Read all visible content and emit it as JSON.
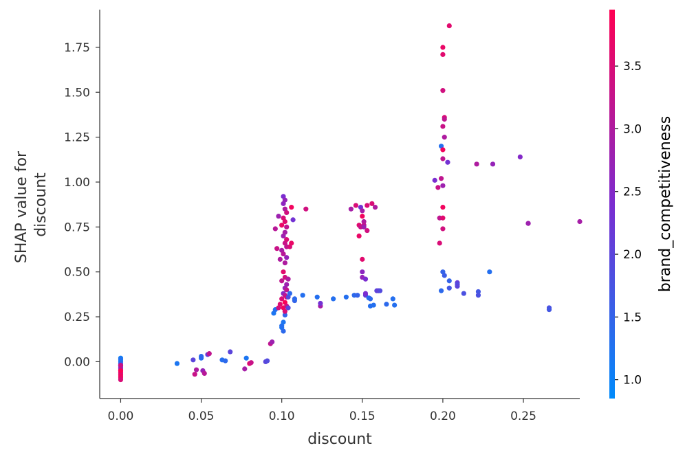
{
  "chart_data": {
    "type": "scatter",
    "title": "",
    "xlabel": "discount",
    "ylabel_lines": [
      "SHAP value for",
      "discount"
    ],
    "xlim": [
      -0.013,
      0.285
    ],
    "ylim": [
      -0.205,
      1.96
    ],
    "xticks": [
      {
        "value": 0.0,
        "label": "0.00"
      },
      {
        "value": 0.05,
        "label": "0.05"
      },
      {
        "value": 0.1,
        "label": "0.10"
      },
      {
        "value": 0.15,
        "label": "0.15"
      },
      {
        "value": 0.2,
        "label": "0.20"
      },
      {
        "value": 0.25,
        "label": "0.25"
      }
    ],
    "yticks": [
      {
        "value": 0.0,
        "label": "0.00"
      },
      {
        "value": 0.25,
        "label": "0.25"
      },
      {
        "value": 0.5,
        "label": "0.50"
      },
      {
        "value": 0.75,
        "label": "0.75"
      },
      {
        "value": 1.0,
        "label": "1.00"
      },
      {
        "value": 1.25,
        "label": "1.25"
      },
      {
        "value": 1.5,
        "label": "1.50"
      },
      {
        "value": 1.75,
        "label": "1.75"
      }
    ],
    "colorbar": {
      "label": "brand_competitiveness",
      "range": [
        0.85,
        3.95
      ],
      "ticks": [
        {
          "value": 1.0,
          "label": "1.0"
        },
        {
          "value": 1.5,
          "label": "1.5"
        },
        {
          "value": 2.0,
          "label": "2.0"
        },
        {
          "value": 2.5,
          "label": "2.5"
        },
        {
          "value": 3.0,
          "label": "3.0"
        },
        {
          "value": 3.5,
          "label": "3.5"
        }
      ],
      "colors": [
        "#008bfb",
        "#ff0052"
      ]
    },
    "grid": false,
    "points": [
      [
        0,
        0.02,
        1.1
      ],
      [
        0,
        0.01,
        1.3
      ],
      [
        0,
        0.0,
        1.2
      ],
      [
        0,
        -0.01,
        1.5
      ],
      [
        0,
        -0.02,
        2.0
      ],
      [
        0,
        -0.03,
        2.4
      ],
      [
        0,
        -0.04,
        2.8
      ],
      [
        0,
        -0.05,
        3.1
      ],
      [
        0,
        -0.06,
        3.4
      ],
      [
        0,
        -0.07,
        3.6
      ],
      [
        0,
        -0.08,
        3.8
      ],
      [
        0,
        -0.09,
        3.7
      ],
      [
        0,
        -0.1,
        3.5
      ],
      [
        0,
        -0.05,
        3.9
      ],
      [
        0,
        -0.02,
        3.3
      ],
      [
        0.035,
        -0.01,
        1.2
      ],
      [
        0.045,
        0.01,
        2.0
      ],
      [
        0.046,
        -0.07,
        3.3
      ],
      [
        0.047,
        -0.045,
        3.0
      ],
      [
        0.05,
        0.02,
        1.3
      ],
      [
        0.05,
        0.03,
        1.4
      ],
      [
        0.051,
        -0.05,
        2.7
      ],
      [
        0.052,
        -0.065,
        3.1
      ],
      [
        0.054,
        0.04,
        2.2
      ],
      [
        0.055,
        0.045,
        3.2
      ],
      [
        0.063,
        0.01,
        1.3
      ],
      [
        0.065,
        0.005,
        1.4
      ],
      [
        0.068,
        0.055,
        2.0
      ],
      [
        0.077,
        -0.04,
        2.9
      ],
      [
        0.078,
        0.02,
        1.2
      ],
      [
        0.08,
        -0.01,
        3.6
      ],
      [
        0.081,
        -0.005,
        3.3
      ],
      [
        0.09,
        0.0,
        2.0
      ],
      [
        0.091,
        0.005,
        1.9
      ],
      [
        0.093,
        0.1,
        3.2
      ],
      [
        0.094,
        0.11,
        2.8
      ],
      [
        0.095,
        0.27,
        1.2
      ],
      [
        0.096,
        0.29,
        1.3
      ],
      [
        0.096,
        0.74,
        3.1
      ],
      [
        0.097,
        0.63,
        3.3
      ],
      [
        0.098,
        0.3,
        3.4
      ],
      [
        0.098,
        0.81,
        2.8
      ],
      [
        0.099,
        0.57,
        3.0
      ],
      [
        0.099,
        0.32,
        3.6
      ],
      [
        0.1,
        0.19,
        1.2
      ],
      [
        0.1,
        0.2,
        1.3
      ],
      [
        0.1,
        0.35,
        3.5
      ],
      [
        0.1,
        0.45,
        3.2
      ],
      [
        0.1,
        0.62,
        2.9
      ],
      [
        0.1,
        0.76,
        3.7
      ],
      [
        0.101,
        0.17,
        1.4
      ],
      [
        0.101,
        0.22,
        1.2
      ],
      [
        0.101,
        0.3,
        3.8
      ],
      [
        0.101,
        0.38,
        2.5
      ],
      [
        0.101,
        0.5,
        3.6
      ],
      [
        0.101,
        0.6,
        3.1
      ],
      [
        0.101,
        0.7,
        2.8
      ],
      [
        0.101,
        0.8,
        3.5
      ],
      [
        0.101,
        0.88,
        2.6
      ],
      [
        0.101,
        0.92,
        2.4
      ],
      [
        0.102,
        0.26,
        1.5
      ],
      [
        0.102,
        0.28,
        3.5
      ],
      [
        0.102,
        0.33,
        3.9
      ],
      [
        0.102,
        0.37,
        3.1
      ],
      [
        0.102,
        0.41,
        2.7
      ],
      [
        0.102,
        0.47,
        3.4
      ],
      [
        0.102,
        0.55,
        3.0
      ],
      [
        0.102,
        0.66,
        3.3
      ],
      [
        0.102,
        0.72,
        2.9
      ],
      [
        0.102,
        0.78,
        3.6
      ],
      [
        0.102,
        0.85,
        3.0
      ],
      [
        0.102,
        0.9,
        2.7
      ],
      [
        0.103,
        0.31,
        3.4
      ],
      [
        0.103,
        0.36,
        3.6
      ],
      [
        0.103,
        0.4,
        3.2
      ],
      [
        0.103,
        0.43,
        2.8
      ],
      [
        0.103,
        0.58,
        2.7
      ],
      [
        0.103,
        0.64,
        3.2
      ],
      [
        0.103,
        0.68,
        3.5
      ],
      [
        0.103,
        0.75,
        3.2
      ],
      [
        0.103,
        0.83,
        3.4
      ],
      [
        0.104,
        0.3,
        2.0
      ],
      [
        0.104,
        0.36,
        1.9
      ],
      [
        0.104,
        0.46,
        3.0
      ],
      [
        0.105,
        0.38,
        1.4
      ],
      [
        0.105,
        0.64,
        3.5
      ],
      [
        0.106,
        0.66,
        3.7
      ],
      [
        0.106,
        0.86,
        3.8
      ],
      [
        0.107,
        0.79,
        2.3
      ],
      [
        0.108,
        0.34,
        1.5
      ],
      [
        0.108,
        0.35,
        1.4
      ],
      [
        0.113,
        0.37,
        1.3
      ],
      [
        0.115,
        0.85,
        3.4
      ],
      [
        0.122,
        0.36,
        1.3
      ],
      [
        0.124,
        0.31,
        2.9
      ],
      [
        0.124,
        0.325,
        2.3
      ],
      [
        0.132,
        0.35,
        1.3
      ],
      [
        0.14,
        0.36,
        1.3
      ],
      [
        0.143,
        0.85,
        2.9
      ],
      [
        0.145,
        0.37,
        1.4
      ],
      [
        0.146,
        0.87,
        3.5
      ],
      [
        0.147,
        0.37,
        1.5
      ],
      [
        0.148,
        0.76,
        3.6
      ],
      [
        0.148,
        0.7,
        3.7
      ],
      [
        0.149,
        0.75,
        3.3
      ],
      [
        0.149,
        0.86,
        2.3
      ],
      [
        0.15,
        0.81,
        3.8
      ],
      [
        0.15,
        0.84,
        2.9
      ],
      [
        0.15,
        0.57,
        3.6
      ],
      [
        0.15,
        0.47,
        2.7
      ],
      [
        0.15,
        0.5,
        2.6
      ],
      [
        0.151,
        0.78,
        3.0
      ],
      [
        0.151,
        0.76,
        3.2
      ],
      [
        0.151,
        0.75,
        2.8
      ],
      [
        0.152,
        0.46,
        2.4
      ],
      [
        0.152,
        0.37,
        2.1
      ],
      [
        0.152,
        0.38,
        2.4
      ],
      [
        0.153,
        0.73,
        3.4
      ],
      [
        0.153,
        0.87,
        3.5
      ],
      [
        0.154,
        0.355,
        1.3
      ],
      [
        0.155,
        0.35,
        1.4
      ],
      [
        0.155,
        0.31,
        1.3
      ],
      [
        0.156,
        0.88,
        3.5
      ],
      [
        0.157,
        0.315,
        1.3
      ],
      [
        0.158,
        0.86,
        3.0
      ],
      [
        0.159,
        0.395,
        2.0
      ],
      [
        0.16,
        0.395,
        2.1
      ],
      [
        0.161,
        0.395,
        1.9
      ],
      [
        0.165,
        0.32,
        1.4
      ],
      [
        0.169,
        0.35,
        1.3
      ],
      [
        0.17,
        0.315,
        1.3
      ],
      [
        0.195,
        1.01,
        2.4
      ],
      [
        0.197,
        0.97,
        3.3
      ],
      [
        0.198,
        0.66,
        3.5
      ],
      [
        0.198,
        0.8,
        3.2
      ],
      [
        0.199,
        0.395,
        1.4
      ],
      [
        0.199,
        1.2,
        1.3
      ],
      [
        0.199,
        1.02,
        3.2
      ],
      [
        0.2,
        1.18,
        3.8
      ],
      [
        0.2,
        0.8,
        3.6
      ],
      [
        0.2,
        0.74,
        3.4
      ],
      [
        0.2,
        0.86,
        3.8
      ],
      [
        0.2,
        0.98,
        2.8
      ],
      [
        0.2,
        1.13,
        3.2
      ],
      [
        0.2,
        1.31,
        3.3
      ],
      [
        0.2,
        1.51,
        3.4
      ],
      [
        0.2,
        1.71,
        3.6
      ],
      [
        0.2,
        1.75,
        3.7
      ],
      [
        0.2,
        0.5,
        1.5
      ],
      [
        0.201,
        1.36,
        3.5
      ],
      [
        0.201,
        1.35,
        3.2
      ],
      [
        0.201,
        0.48,
        1.6
      ],
      [
        0.201,
        1.25,
        3.0
      ],
      [
        0.203,
        1.11,
        2.3
      ],
      [
        0.204,
        1.87,
        3.6
      ],
      [
        0.204,
        0.41,
        1.7
      ],
      [
        0.204,
        0.45,
        1.5
      ],
      [
        0.209,
        0.44,
        2.1
      ],
      [
        0.209,
        0.43,
        1.9
      ],
      [
        0.209,
        0.42,
        2.0
      ],
      [
        0.213,
        0.38,
        1.8
      ],
      [
        0.221,
        1.1,
        3.0
      ],
      [
        0.222,
        0.39,
        1.7
      ],
      [
        0.222,
        0.37,
        1.8
      ],
      [
        0.229,
        0.5,
        1.3
      ],
      [
        0.231,
        1.1,
        2.7
      ],
      [
        0.248,
        1.14,
        2.5
      ],
      [
        0.253,
        0.77,
        3.1
      ],
      [
        0.253,
        0.77,
        2.8
      ],
      [
        0.266,
        0.3,
        1.8
      ],
      [
        0.266,
        0.29,
        1.7
      ],
      [
        0.285,
        0.78,
        2.9
      ]
    ]
  }
}
